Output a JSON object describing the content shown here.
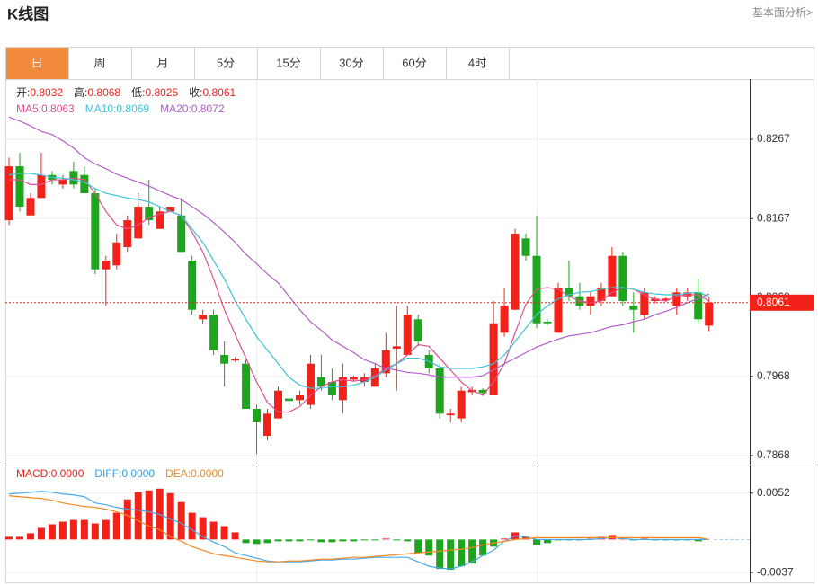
{
  "header": {
    "title": "K线图",
    "link": "基本面分析>"
  },
  "tabs": [
    "日",
    "周",
    "月",
    "5分",
    "15分",
    "30分",
    "60分",
    "4时"
  ],
  "active_tab": 0,
  "chart_data": [
    {
      "type": "candlestick",
      "readouts": [
        {
          "label": "开:",
          "value": 0.8032
        },
        {
          "label": "高:",
          "value": 0.8068
        },
        {
          "label": "低:",
          "value": 0.8025
        },
        {
          "label": "收:",
          "value": 0.8061
        }
      ],
      "ma_readouts": [
        {
          "label": "MA5:",
          "value": 0.8063,
          "color": "#e0508c"
        },
        {
          "label": "MA10:",
          "value": 0.8069,
          "color": "#3cc4d8"
        },
        {
          "label": "MA20:",
          "value": 0.8072,
          "color": "#b060c8"
        }
      ],
      "up_color": "#f2221a",
      "down_color": "#1ea51e",
      "open": [
        0.8165,
        0.8233,
        0.8171,
        0.8193,
        0.8222,
        0.821,
        0.8227,
        0.8222,
        0.8199,
        0.8103,
        0.8108,
        0.8131,
        0.8142,
        0.8182,
        0.8154,
        0.8176,
        0.8171,
        0.8114,
        0.804,
        0.8046,
        0.7995,
        0.7988,
        0.7984,
        0.7927,
        0.7893,
        0.7915,
        0.794,
        0.7938,
        0.7932,
        0.7967,
        0.7961,
        0.7938,
        0.7964,
        0.7961,
        0.7955,
        0.7972,
        0.8003,
        0.7995,
        0.804,
        0.7995,
        0.7978,
        0.7919,
        0.7915,
        0.7948,
        0.7951,
        0.7944,
        0.8023,
        0.8052,
        0.8142,
        0.812,
        0.8037,
        0.8023,
        0.808,
        0.8069,
        0.8057,
        0.8063,
        0.8069,
        0.812,
        0.8057,
        0.8046,
        0.8063,
        0.8064,
        0.8057,
        0.8069,
        0.8074,
        0.8032
      ],
      "high": [
        0.8244,
        0.825,
        0.8199,
        0.825,
        0.8227,
        0.8222,
        0.8239,
        0.8233,
        0.8205,
        0.812,
        0.8148,
        0.8171,
        0.8199,
        0.8216,
        0.8182,
        0.8182,
        0.8193,
        0.812,
        0.8052,
        0.8052,
        0.8012,
        0.7992,
        0.7989,
        0.7932,
        0.7927,
        0.7955,
        0.7944,
        0.795,
        0.7995,
        0.7995,
        0.7978,
        0.7984,
        0.7969,
        0.7972,
        0.7984,
        0.8023,
        0.8057,
        0.8057,
        0.8046,
        0.8001,
        0.7984,
        0.7927,
        0.7955,
        0.7955,
        0.7953,
        0.8063,
        0.808,
        0.8154,
        0.8148,
        0.8171,
        0.804,
        0.8086,
        0.8114,
        0.8086,
        0.8074,
        0.8086,
        0.8131,
        0.8125,
        0.8074,
        0.808,
        0.8069,
        0.8068,
        0.808,
        0.808,
        0.8091,
        0.8068
      ],
      "low": [
        0.8159,
        0.8176,
        0.8171,
        0.8193,
        0.821,
        0.8205,
        0.8205,
        0.8199,
        0.8097,
        0.8057,
        0.8103,
        0.8125,
        0.8142,
        0.8159,
        0.8154,
        0.8176,
        0.8125,
        0.8046,
        0.8035,
        0.7995,
        0.7955,
        0.7986,
        0.7927,
        0.787,
        0.7887,
        0.7915,
        0.7932,
        0.7932,
        0.7927,
        0.795,
        0.7938,
        0.7921,
        0.7962,
        0.7955,
        0.7955,
        0.7967,
        0.795,
        0.7995,
        0.8006,
        0.7972,
        0.7915,
        0.791,
        0.791,
        0.7944,
        0.7945,
        0.7944,
        0.8018,
        0.8052,
        0.8114,
        0.8029,
        0.8032,
        0.8023,
        0.8063,
        0.8052,
        0.8046,
        0.8057,
        0.8069,
        0.8057,
        0.8023,
        0.804,
        0.806,
        0.8062,
        0.8046,
        0.8063,
        0.8035,
        0.8025
      ],
      "close": [
        0.8233,
        0.8182,
        0.8193,
        0.8222,
        0.8216,
        0.8216,
        0.821,
        0.8199,
        0.8103,
        0.8114,
        0.8137,
        0.8165,
        0.8182,
        0.8165,
        0.8176,
        0.8182,
        0.8125,
        0.8052,
        0.8046,
        0.8001,
        0.7984,
        0.799,
        0.7927,
        0.791,
        0.7921,
        0.795,
        0.7937,
        0.7944,
        0.7984,
        0.7955,
        0.7944,
        0.7967,
        0.7967,
        0.7967,
        0.7978,
        0.8001,
        0.8006,
        0.8046,
        0.8012,
        0.7978,
        0.7921,
        0.7921,
        0.795,
        0.7951,
        0.7947,
        0.8035,
        0.8057,
        0.8148,
        0.812,
        0.8035,
        0.8035,
        0.808,
        0.8069,
        0.8057,
        0.8069,
        0.808,
        0.812,
        0.8063,
        0.8052,
        0.8074,
        0.8066,
        0.8066,
        0.8074,
        0.8074,
        0.804,
        0.8061
      ],
      "series": [
        {
          "name": "MA5",
          "color": "#e0508c",
          "values": [
            0.8216,
            0.8216,
            0.821,
            0.821,
            0.8216,
            0.8216,
            0.8218,
            0.8216,
            0.8199,
            0.8176,
            0.8159,
            0.8154,
            0.8159,
            0.8168,
            0.8173,
            0.8176,
            0.8171,
            0.815,
            0.8125,
            0.8091,
            0.8052,
            0.8021,
            0.7991,
            0.7961,
            0.7935,
            0.7923,
            0.7923,
            0.793,
            0.7944,
            0.7955,
            0.7961,
            0.7964,
            0.7962,
            0.7964,
            0.7969,
            0.7978,
            0.7984,
            0.7995,
            0.8008,
            0.8006,
            0.7991,
            0.7976,
            0.7961,
            0.795,
            0.7944,
            0.7961,
            0.7984,
            0.8023,
            0.8059,
            0.8078,
            0.808,
            0.8078,
            0.8069,
            0.8063,
            0.8061,
            0.8063,
            0.8074,
            0.808,
            0.8078,
            0.8071,
            0.8065,
            0.8063,
            0.8069,
            0.8071,
            0.8071,
            0.8063
          ]
        },
        {
          "name": "MA10",
          "color": "#3cc4d8",
          "values": [
            0.8222,
            0.8224,
            0.8224,
            0.8222,
            0.8219,
            0.8218,
            0.8216,
            0.8213,
            0.8205,
            0.8199,
            0.8196,
            0.8193,
            0.8191,
            0.8188,
            0.8182,
            0.8176,
            0.8171,
            0.8154,
            0.8137,
            0.8114,
            0.8091,
            0.8063,
            0.804,
            0.8018,
            0.8001,
            0.7984,
            0.7967,
            0.7957,
            0.7953,
            0.7953,
            0.7955,
            0.7955,
            0.7957,
            0.7961,
            0.7967,
            0.7976,
            0.7984,
            0.7991,
            0.7991,
            0.7987,
            0.798,
            0.7978,
            0.7978,
            0.7978,
            0.798,
            0.7984,
            0.7995,
            0.8012,
            0.8029,
            0.8046,
            0.8057,
            0.8066,
            0.8071,
            0.8074,
            0.8075,
            0.8078,
            0.808,
            0.808,
            0.8078,
            0.8074,
            0.8072,
            0.8071,
            0.8071,
            0.8073,
            0.8074,
            0.8069
          ]
        },
        {
          "name": "MA20",
          "color": "#b060c8",
          "values": [
            0.8295,
            0.829,
            0.8284,
            0.8277,
            0.8273,
            0.8265,
            0.8256,
            0.8244,
            0.8236,
            0.823,
            0.8223,
            0.8218,
            0.8213,
            0.8208,
            0.8202,
            0.8196,
            0.8191,
            0.8182,
            0.8173,
            0.8162,
            0.815,
            0.8137,
            0.8122,
            0.811,
            0.8097,
            0.8086,
            0.8069,
            0.8052,
            0.8037,
            0.8026,
            0.8014,
            0.8006,
            0.7998,
            0.7989,
            0.7984,
            0.7978,
            0.7976,
            0.7973,
            0.7972,
            0.797,
            0.7967,
            0.7967,
            0.7967,
            0.7967,
            0.7969,
            0.7976,
            0.7984,
            0.7991,
            0.7998,
            0.8005,
            0.801,
            0.8015,
            0.8019,
            0.8021,
            0.8023,
            0.8027,
            0.8031,
            0.8033,
            0.8037,
            0.804,
            0.8046,
            0.805,
            0.8055,
            0.8061,
            0.8066,
            0.8072
          ]
        }
      ],
      "last_price": 0.8061,
      "ylim": [
        0.7859,
        0.8343
      ],
      "yticks": [
        0.8267,
        0.8167,
        0.8068,
        0.7968,
        0.7868
      ],
      "grid": true
    },
    {
      "type": "macd",
      "readouts": [
        {
          "label": "MACD:",
          "value": 0,
          "value_label": "0.0000",
          "color": "#e8261e"
        },
        {
          "label": "DIFF:",
          "value": 0,
          "value_label": "0.0000",
          "color": "#3a9ee4"
        },
        {
          "label": "DEA:",
          "value": 0,
          "value_label": "0.0000",
          "color": "#f08a24"
        }
      ],
      "up_color": "#f2221a",
      "down_color": "#1ea51e",
      "histogram": [
        0.0003,
        0.0003,
        0.0007,
        0.0013,
        0.0017,
        0.002,
        0.0022,
        0.0022,
        0.0018,
        0.0022,
        0.003,
        0.0045,
        0.0053,
        0.0055,
        0.0057,
        0.0052,
        0.0042,
        0.003,
        0.0025,
        0.002,
        0.0015,
        0.0008,
        -0.0004,
        -0.0005,
        -0.0004,
        -0.0002,
        -0.0002,
        -0.0002,
        -0.0001,
        -0.0003,
        -0.0003,
        -0.0002,
        -0.0002,
        -0.0001,
        -0.0001,
        0.0001,
        -0.0001,
        -0.0002,
        -0.0015,
        -0.0018,
        -0.0033,
        -0.0034,
        -0.003,
        -0.0027,
        -0.0018,
        -0.0008,
        0.0001,
        0.0008,
        0.0003,
        -0.0006,
        -0.0004,
        -0.0001,
        -0.0001,
        -0.0001,
        0.0001,
        0.0003,
        0.0005,
        0.0001,
        -0.0001,
        0.0001,
        -0.0001,
        -0.0001,
        -0.0001,
        -0.0001,
        -0.0002,
        0
      ],
      "series": [
        {
          "name": "DIFF",
          "color": "#4aa8e8",
          "values": [
            0.0051,
            0.0052,
            0.0053,
            0.0054,
            0.0053,
            0.0051,
            0.005,
            0.0048,
            0.0041,
            0.0039,
            0.0036,
            0.0034,
            0.0033,
            0.0031,
            0.0028,
            0.0023,
            0.0018,
            0.0011,
            0.0003,
            -0.0003,
            -0.0008,
            -0.0015,
            -0.0018,
            -0.0021,
            -0.0024,
            -0.0025,
            -0.0025,
            -0.0025,
            -0.0024,
            -0.0023,
            -0.0023,
            -0.0022,
            -0.0022,
            -0.0021,
            -0.002,
            -0.002,
            -0.002,
            -0.002,
            -0.0025,
            -0.003,
            -0.0032,
            -0.0033,
            -0.003,
            -0.0025,
            -0.0018,
            -0.0012,
            -0.0002,
            0.0004,
            0.0003,
            0,
            0,
            0,
            0,
            0,
            0,
            0.0001,
            0.0002,
            0.0001,
            0,
            0,
            0,
            0,
            0,
            0,
            0,
            0
          ]
        },
        {
          "name": "DEA",
          "color": "#f08a24",
          "values": [
            0.0049,
            0.0048,
            0.0047,
            0.0046,
            0.0044,
            0.0041,
            0.0039,
            0.0037,
            0.0036,
            0.0034,
            0.0031,
            0.0027,
            0.0021,
            0.0015,
            0.0011,
            0.0003,
            -0.0002,
            -0.0008,
            -0.0012,
            -0.0016,
            -0.0018,
            -0.002,
            -0.0022,
            -0.0024,
            -0.0025,
            -0.0025,
            -0.0024,
            -0.0024,
            -0.0023,
            -0.0022,
            -0.0022,
            -0.0021,
            -0.002,
            -0.002,
            -0.0019,
            -0.0018,
            -0.0017,
            -0.0016,
            -0.0015,
            -0.0014,
            -0.0013,
            -0.0012,
            -0.0011,
            -0.0009,
            -0.0006,
            -0.0004,
            -0.0002,
            0,
            0.0001,
            0.0002,
            0.0002,
            0.0002,
            0.0002,
            0.0002,
            0.0002,
            0.0002,
            0.0002,
            0.0002,
            0.0002,
            0.0002,
            0.0002,
            0.0002,
            0.0002,
            0.0002,
            0.0002,
            0
          ]
        }
      ],
      "ylim": [
        -0.0048,
        0.0083
      ],
      "yticks": [
        0.0052,
        -0.0037
      ],
      "grid": true
    }
  ]
}
